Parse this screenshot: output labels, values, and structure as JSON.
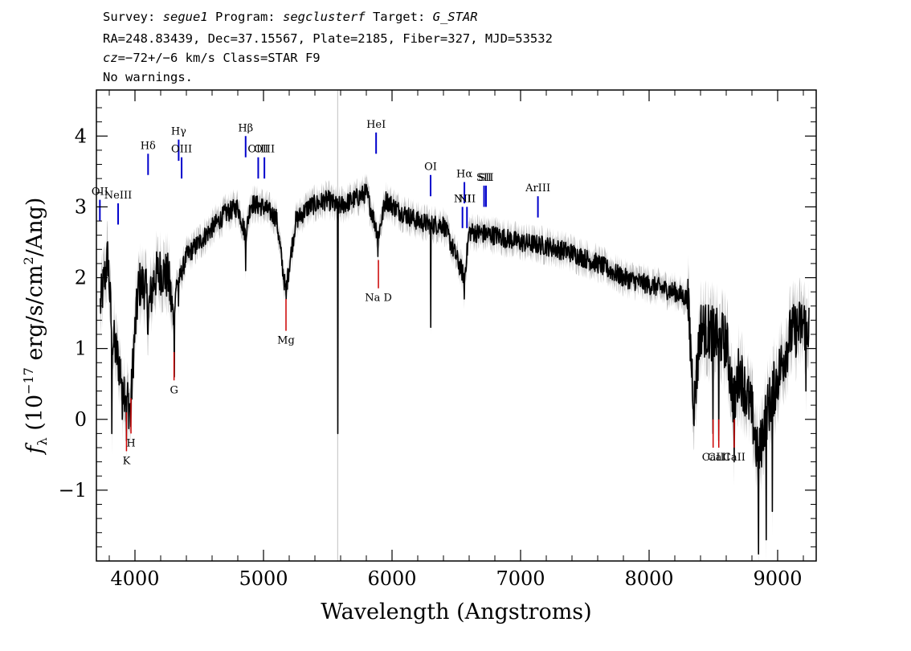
{
  "header": {
    "line1": {
      "survey_label": "Survey: ",
      "survey": "segue1",
      "program_label": " Program: ",
      "program": "segclusterf",
      "target_label": " Target: ",
      "target": "G_STAR"
    },
    "line2": "RA=248.83439, Dec=37.15567, Plate=2185, Fiber=327, MJD=53532",
    "line3": {
      "cz": "cz",
      "value": "=−72+/−6",
      "rest": " km/s Class=STAR F9"
    },
    "line4": "No warnings."
  },
  "chart_data": {
    "type": "line",
    "xlabel": "Wavelength (Angstroms)",
    "ylabel_parts": {
      "f": "f",
      "lambda": "λ",
      "open": " (10",
      "exp": "−17",
      "mid": " erg/s/cm",
      "sq": "2",
      "close": "/Ang)"
    },
    "xlim": [
      3700,
      9300
    ],
    "ylim": [
      -2.0,
      4.65
    ],
    "x_ticks": [
      4000,
      5000,
      6000,
      7000,
      8000,
      9000
    ],
    "y_ticks": [
      -1,
      0,
      1,
      2,
      3,
      4
    ],
    "y_tick_labels": [
      "−1",
      "0",
      "1",
      "2",
      "3",
      "4"
    ],
    "grid": false,
    "colors": {
      "flux": "#000000",
      "error": "#c0c0c0",
      "emission": "#0000cc",
      "absorption": "#cc0000"
    },
    "series": [
      {
        "role": "flux",
        "anchors": [
          [
            3730,
            1.6
          ],
          [
            3790,
            2.3
          ],
          [
            3820,
            1.2
          ],
          [
            3860,
            0.9
          ],
          [
            3900,
            0.6
          ],
          [
            3940,
            0.3
          ],
          [
            3965,
            0.1
          ],
          [
            3990,
            1.0
          ],
          [
            4030,
            1.9
          ],
          [
            4080,
            1.9
          ],
          [
            4102,
            1.5
          ],
          [
            4150,
            2.0
          ],
          [
            4200,
            2.1
          ],
          [
            4260,
            2.0
          ],
          [
            4300,
            1.4
          ],
          [
            4320,
            1.9
          ],
          [
            4350,
            2.0
          ],
          [
            4400,
            2.3
          ],
          [
            4500,
            2.5
          ],
          [
            4600,
            2.7
          ],
          [
            4700,
            2.9
          ],
          [
            4800,
            3.0
          ],
          [
            4861,
            2.6
          ],
          [
            4900,
            3.05
          ],
          [
            5000,
            3.0
          ],
          [
            5100,
            2.85
          ],
          [
            5172,
            1.8
          ],
          [
            5250,
            2.8
          ],
          [
            5350,
            3.0
          ],
          [
            5500,
            3.1
          ],
          [
            5577,
            3.0
          ],
          [
            5700,
            3.1
          ],
          [
            5800,
            3.2
          ],
          [
            5893,
            2.6
          ],
          [
            5950,
            3.1
          ],
          [
            6050,
            2.95
          ],
          [
            6200,
            2.8
          ],
          [
            6300,
            2.75
          ],
          [
            6400,
            2.75
          ],
          [
            6563,
            2.0
          ],
          [
            6600,
            2.65
          ],
          [
            6800,
            2.6
          ],
          [
            7000,
            2.5
          ],
          [
            7200,
            2.45
          ],
          [
            7400,
            2.35
          ],
          [
            7600,
            2.2
          ],
          [
            7800,
            2.0
          ],
          [
            8000,
            1.9
          ],
          [
            8200,
            1.8
          ],
          [
            8300,
            1.7
          ],
          [
            8350,
            0.2
          ],
          [
            8400,
            1.3
          ],
          [
            8500,
            1.2
          ],
          [
            8600,
            1.1
          ],
          [
            8662,
            0.2
          ],
          [
            8700,
            0.7
          ],
          [
            8800,
            0.1
          ],
          [
            8850,
            -0.6
          ],
          [
            8900,
            0.0
          ],
          [
            9000,
            0.6
          ],
          [
            9100,
            1.2
          ],
          [
            9200,
            1.35
          ],
          [
            9250,
            1.3
          ]
        ],
        "sharp_features": [
          [
            3820,
            -0.2
          ],
          [
            3900,
            0.0
          ],
          [
            3934,
            -0.3
          ],
          [
            3968,
            -0.1
          ],
          [
            4102,
            1.2
          ],
          [
            4305,
            0.6
          ],
          [
            4340,
            1.6
          ],
          [
            4861,
            2.1
          ],
          [
            5175,
            1.7
          ],
          [
            5577,
            -0.2
          ],
          [
            5890,
            2.3
          ],
          [
            6300,
            1.3
          ],
          [
            6563,
            1.7
          ],
          [
            8498,
            -0.2
          ],
          [
            8542,
            -0.3
          ],
          [
            8662,
            -0.6
          ],
          [
            8850,
            -1.9
          ],
          [
            8910,
            -1.7
          ],
          [
            8960,
            -1.3
          ],
          [
            9220,
            0.4
          ]
        ]
      }
    ],
    "emission_lines": [
      {
        "name": "OII",
        "x": 3727
      },
      {
        "name": "NeIII",
        "x": 3869
      },
      {
        "name": "Hδ",
        "x": 4102
      },
      {
        "name": "Hγ",
        "x": 4340
      },
      {
        "name": "OIII",
        "x": 4363
      },
      {
        "name": "Hβ",
        "x": 4861
      },
      {
        "name": "OIII",
        "x": 4959
      },
      {
        "name": "OIII",
        "x": 5007
      },
      {
        "name": "HeI",
        "x": 5876
      },
      {
        "name": "OI",
        "x": 6300
      },
      {
        "name": "NII",
        "x": 6548
      },
      {
        "name": "Hα",
        "x": 6563
      },
      {
        "name": "NII",
        "x": 6583
      },
      {
        "name": "SII",
        "x": 6716
      },
      {
        "name": "SII",
        "x": 6731
      },
      {
        "name": "ArIII",
        "x": 7135
      }
    ],
    "absorption_lines": [
      {
        "name": "K",
        "x": 3934
      },
      {
        "name": "H",
        "x": 3969
      },
      {
        "name": "G",
        "x": 4304
      },
      {
        "name": "Mg",
        "x": 5175
      },
      {
        "name": "Na D",
        "x": 5894
      },
      {
        "name": "CaII",
        "x": 8498
      },
      {
        "name": "CaII",
        "x": 8542
      },
      {
        "name": "CaII",
        "x": 8662
      }
    ]
  }
}
